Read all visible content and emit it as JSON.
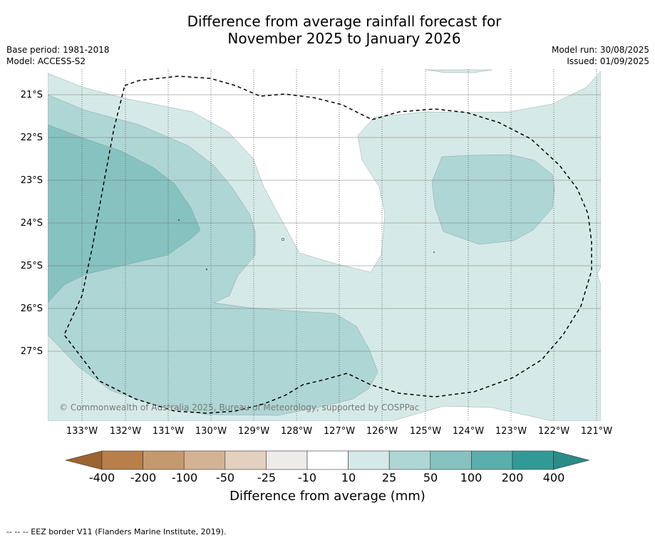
{
  "title": "Difference from average rainfall forecast for\nNovember 2025 to January 2026",
  "meta_left": "Base period: 1981-2018\nModel: ACCESS-S2",
  "meta_right": "Model run: 30/08/2025\nIssued: 01/09/2025",
  "copyright": "© Commonwealth of Australia 2025, Bureau of Meteorology, supported by COSPPac",
  "latitude_labels": [
    "21°S",
    "22°S",
    "23°S",
    "24°S",
    "25°S",
    "26°S",
    "27°S"
  ],
  "longitude_labels": [
    "133°W",
    "132°W",
    "131°W",
    "130°W",
    "129°W",
    "128°W",
    "127°W",
    "126°W",
    "125°W",
    "124°W",
    "123°W",
    "122°W",
    "121°W"
  ],
  "colorbar": {
    "title": "Difference from average (mm)",
    "ticks": [
      "-400",
      "-200",
      "-100",
      "-50",
      "-25",
      "-10",
      "10",
      "25",
      "50",
      "100",
      "200",
      "400"
    ],
    "colors": [
      "#a9703a",
      "#b97f4a",
      "#c4996e",
      "#d4b394",
      "#e3d0be",
      "#eeece9",
      "#ffffff",
      "#d5eae8",
      "#aed6d4",
      "#85c2c0",
      "#5aaeab",
      "#319a97"
    ],
    "low_extend_color": "#9b6430",
    "high_extend_color": "#2a8b88"
  },
  "legend_footnote": "--  --  -- EEZ border V11 (Flanders Marine Institute, 2019)."
}
